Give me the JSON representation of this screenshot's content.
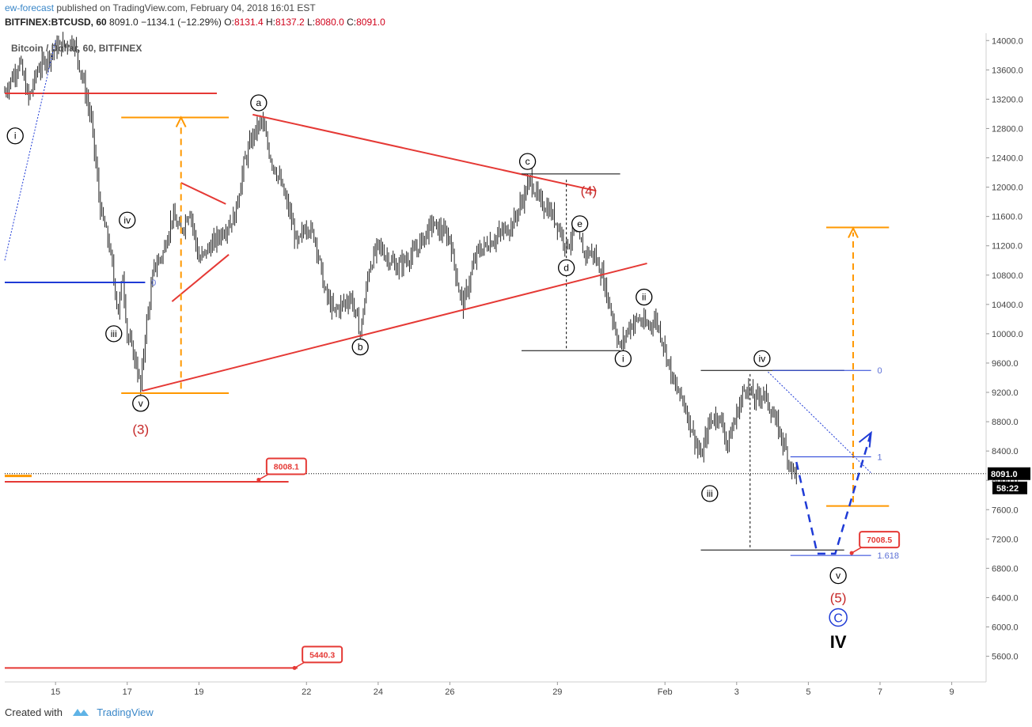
{
  "header": {
    "author": "ew-forecast",
    "published_text": "published on TradingView.com, February 04, 2018 16:01 EST"
  },
  "ticker": {
    "symbol": "BITFINEX:BTCUSD, 60",
    "last": "8091.0",
    "change": "−1134.1 (−12.29%)",
    "open_label": "O:",
    "open": "8131.4",
    "high_label": "H:",
    "high": "8137.2",
    "low_label": "L:",
    "low": "8080.0",
    "close_label": "C:",
    "close": "8091.0"
  },
  "footer": {
    "created_with": "Created with",
    "brand": "TradingView"
  },
  "colors": {
    "up": "#222222",
    "red": "#e53935",
    "orange": "#ff9800",
    "blue": "#1f3bd6",
    "grid": "#e8e8e8"
  },
  "chart_data": {
    "type": "candlestick",
    "title": "Bitcoin / Dollar, 60, BITFINEX",
    "yticks": [
      14000,
      13600,
      13200,
      12800,
      12400,
      12000,
      11600,
      11200,
      10800,
      10400,
      10000,
      9600,
      9200,
      8800,
      8400,
      8000,
      7600,
      7200,
      6800,
      6400,
      6000,
      5600
    ],
    "ytick_labels": [
      "14000.0",
      "13600.0",
      "13200.0",
      "12800.0",
      "12400.0",
      "12000.0",
      "11600.0",
      "11200.0",
      "10800.0",
      "10400.0",
      "10000.0",
      "9600.0",
      "9200.0",
      "8800.0",
      "8400.0",
      "8000.0",
      "7600.0",
      "7200.0",
      "6800.0",
      "6400.0",
      "6000.0",
      "5600.0"
    ],
    "ylim": [
      5250,
      14100
    ],
    "xlim": [
      "2018-01-13T14:00",
      "2018-02-09T23:00"
    ],
    "xticks": [
      {
        "t": "2018-01-15",
        "label": "15"
      },
      {
        "t": "2018-01-17",
        "label": "17"
      },
      {
        "t": "2018-01-19",
        "label": "19"
      },
      {
        "t": "2018-01-22",
        "label": "22"
      },
      {
        "t": "2018-01-24",
        "label": "24"
      },
      {
        "t": "2018-01-26",
        "label": "26"
      },
      {
        "t": "2018-01-29",
        "label": "29"
      },
      {
        "t": "2018-02-01",
        "label": "Feb"
      },
      {
        "t": "2018-02-03",
        "label": "3"
      },
      {
        "t": "2018-02-05",
        "label": "5"
      },
      {
        "t": "2018-02-07",
        "label": "7"
      },
      {
        "t": "2018-02-09",
        "label": "9"
      }
    ],
    "last_price": "8091.0",
    "last_price_value": 8091,
    "countdown": "58:22",
    "path_anchors": [
      [
        "2018-01-13T14:00",
        13300
      ],
      [
        "2018-01-14T00:00",
        13700
      ],
      [
        "2018-01-14T06:00",
        13200
      ],
      [
        "2018-01-14T12:00",
        13600
      ],
      [
        "2018-01-15T00:00",
        13900
      ],
      [
        "2018-01-15T12:00",
        14000
      ],
      [
        "2018-01-15T18:00",
        13500
      ],
      [
        "2018-01-16T00:00",
        12900
      ],
      [
        "2018-01-16T06:00",
        11700
      ],
      [
        "2018-01-16T12:00",
        11200
      ],
      [
        "2018-01-16T18:00",
        10300
      ],
      [
        "2018-01-16T21:00",
        10800
      ],
      [
        "2018-01-17T00:00",
        10000
      ],
      [
        "2018-01-17T06:00",
        9600
      ],
      [
        "2018-01-17T09:00",
        9250
      ],
      [
        "2018-01-17T12:00",
        10000
      ],
      [
        "2018-01-17T18:00",
        10900
      ],
      [
        "2018-01-18T00:00",
        11100
      ],
      [
        "2018-01-18T06:00",
        11600
      ],
      [
        "2018-01-18T12:00",
        11400
      ],
      [
        "2018-01-18T18:00",
        11700
      ],
      [
        "2018-01-19T00:00",
        11000
      ],
      [
        "2018-01-19T12:00",
        11300
      ],
      [
        "2018-01-20T00:00",
        11600
      ],
      [
        "2018-01-20T06:00",
        12300
      ],
      [
        "2018-01-20T12:00",
        12700
      ],
      [
        "2018-01-20T18:00",
        12900
      ],
      [
        "2018-01-21T00:00",
        12400
      ],
      [
        "2018-01-21T06:00",
        12100
      ],
      [
        "2018-01-21T12:00",
        11700
      ],
      [
        "2018-01-21T18:00",
        11200
      ],
      [
        "2018-01-22T00:00",
        11500
      ],
      [
        "2018-01-22T06:00",
        11300
      ],
      [
        "2018-01-22T12:00",
        10600
      ],
      [
        "2018-01-22T18:00",
        10300
      ],
      [
        "2018-01-23T06:00",
        10500
      ],
      [
        "2018-01-23T12:00",
        10000
      ],
      [
        "2018-01-23T18:00",
        10900
      ],
      [
        "2018-01-24T00:00",
        11200
      ],
      [
        "2018-01-24T12:00",
        10900
      ],
      [
        "2018-01-25T00:00",
        11100
      ],
      [
        "2018-01-25T12:00",
        11500
      ],
      [
        "2018-01-26T00:00",
        11300
      ],
      [
        "2018-01-26T06:00",
        10600
      ],
      [
        "2018-01-26T09:00",
        10400
      ],
      [
        "2018-01-26T18:00",
        11100
      ],
      [
        "2018-01-27T06:00",
        11300
      ],
      [
        "2018-01-27T18:00",
        11500
      ],
      [
        "2018-01-28T00:00",
        11800
      ],
      [
        "2018-01-28T06:00",
        12100
      ],
      [
        "2018-01-28T12:00",
        11800
      ],
      [
        "2018-01-28T18:00",
        11700
      ],
      [
        "2018-01-29T00:00",
        11500
      ],
      [
        "2018-01-29T06:00",
        11200
      ],
      [
        "2018-01-29T12:00",
        11400
      ],
      [
        "2018-01-29T18:00",
        11100
      ],
      [
        "2018-01-30T00:00",
        11100
      ],
      [
        "2018-01-30T06:00",
        10800
      ],
      [
        "2018-01-30T12:00",
        10300
      ],
      [
        "2018-01-30T18:00",
        9800
      ],
      [
        "2018-01-31T00:00",
        10100
      ],
      [
        "2018-01-31T06:00",
        10200
      ],
      [
        "2018-01-31T12:00",
        10100
      ],
      [
        "2018-01-31T18:00",
        10200
      ],
      [
        "2018-02-01T00:00",
        9800
      ],
      [
        "2018-02-01T06:00",
        9300
      ],
      [
        "2018-02-01T12:00",
        9100
      ],
      [
        "2018-02-01T18:00",
        8700
      ],
      [
        "2018-02-02T00:00",
        8300
      ],
      [
        "2018-02-02T06:00",
        8800
      ],
      [
        "2018-02-02T12:00",
        8900
      ],
      [
        "2018-02-02T18:00",
        8500
      ],
      [
        "2018-02-03T00:00",
        8900
      ],
      [
        "2018-02-03T06:00",
        9300
      ],
      [
        "2018-02-03T12:00",
        9100
      ],
      [
        "2018-02-03T18:00",
        9200
      ],
      [
        "2018-02-04T00:00",
        8900
      ],
      [
        "2018-02-04T06:00",
        8600
      ],
      [
        "2018-02-04T12:00",
        8200
      ],
      [
        "2018-02-04T16:00",
        8091
      ]
    ],
    "wave_labels": [
      {
        "text": "i",
        "t": "2018-01-13T21:00",
        "p": 12700,
        "style": "circle"
      },
      {
        "text": "iii",
        "t": "2018-01-16T15:00",
        "p": 10000,
        "style": "circle"
      },
      {
        "text": "iv",
        "t": "2018-01-17T00:00",
        "p": 11550,
        "style": "circle"
      },
      {
        "text": "v",
        "t": "2018-01-17T09:00",
        "p": 9050,
        "style": "circle"
      },
      {
        "text": "(3)",
        "t": "2018-01-17T09:00",
        "p": 8700,
        "style": "red"
      },
      {
        "text": "a",
        "t": "2018-01-20T16:00",
        "p": 13150,
        "style": "circle"
      },
      {
        "text": "b",
        "t": "2018-01-23T12:00",
        "p": 9820,
        "style": "circle"
      },
      {
        "text": "c",
        "t": "2018-01-28T04:00",
        "p": 12350,
        "style": "circle"
      },
      {
        "text": "(4)",
        "t": "2018-01-29T21:00",
        "p": 11950,
        "style": "red"
      },
      {
        "text": "d",
        "t": "2018-01-29T06:00",
        "p": 10900,
        "style": "circle"
      },
      {
        "text": "e",
        "t": "2018-01-29T15:00",
        "p": 11500,
        "style": "circle"
      },
      {
        "text": "ii",
        "t": "2018-01-31T10:00",
        "p": 10500,
        "style": "circle"
      },
      {
        "text": "i",
        "t": "2018-01-30T20:00",
        "p": 9660,
        "style": "circle"
      },
      {
        "text": "iii",
        "t": "2018-02-02T06:00",
        "p": 7820,
        "style": "circle"
      },
      {
        "text": "iv",
        "t": "2018-02-03T17:00",
        "p": 9660,
        "style": "circle"
      },
      {
        "text": "v",
        "t": "2018-02-05T20:00",
        "p": 6700,
        "style": "circle"
      },
      {
        "text": "(5)",
        "t": "2018-02-05T20:00",
        "p": 6400,
        "style": "red"
      },
      {
        "text": "C",
        "t": "2018-02-05T20:00",
        "p": 6130,
        "style": "blue"
      },
      {
        "text": "IV",
        "t": "2018-02-05T20:00",
        "p": 5800,
        "style": "big"
      }
    ],
    "price_tags": [
      {
        "text": "8008.1",
        "t": "2018-01-20T16:00",
        "p": 8008.1
      },
      {
        "text": "7008.5",
        "t": "2018-02-06T05:00",
        "p": 7008.5
      },
      {
        "text": "5440.3",
        "t": "2018-01-21T16:00",
        "p": 5440.3
      }
    ],
    "fib_labels": [
      {
        "text": "0",
        "t": "2018-01-17T14:00",
        "p": 10700
      },
      {
        "text": "0",
        "t": "2018-02-06T20:00",
        "p": 9500
      },
      {
        "text": "1",
        "t": "2018-02-06T20:00",
        "p": 8320
      },
      {
        "text": "1.618",
        "t": "2018-02-06T20:00",
        "p": 6975
      }
    ]
  }
}
